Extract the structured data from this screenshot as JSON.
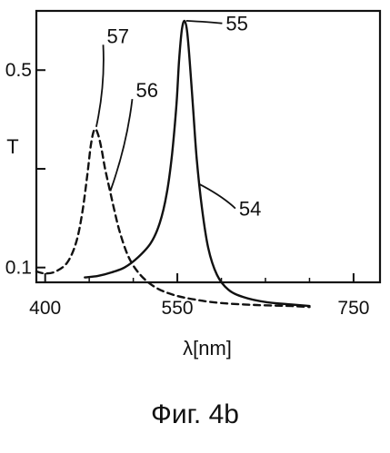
{
  "chart_data": {
    "type": "line",
    "title": "",
    "xlabel": "λ[nm]",
    "ylabel": "T",
    "xlim": [
      390,
      780
    ],
    "ylim": [
      0.07,
      0.62
    ],
    "x_ticks": [
      {
        "value": 400,
        "label": "400"
      },
      {
        "value": 550,
        "label": "550"
      },
      {
        "value": 750,
        "label": "750"
      }
    ],
    "y_ticks": [
      {
        "value": 0.1,
        "label": "0.1"
      },
      {
        "value": 0.3,
        "label": ""
      },
      {
        "value": 0.5,
        "label": "0.5"
      }
    ],
    "x_minor_ticks": [
      450,
      500,
      600,
      650,
      700
    ],
    "grid": false,
    "series": [
      {
        "id": "54",
        "style": "solid",
        "points": [
          [
            445,
            0.08
          ],
          [
            460,
            0.083
          ],
          [
            475,
            0.09
          ],
          [
            490,
            0.1
          ],
          [
            505,
            0.12
          ],
          [
            520,
            0.15
          ],
          [
            530,
            0.19
          ],
          [
            538,
            0.25
          ],
          [
            544,
            0.33
          ],
          [
            549,
            0.43
          ],
          [
            552,
            0.52
          ],
          [
            555,
            0.58
          ],
          [
            558,
            0.6
          ],
          [
            561,
            0.58
          ],
          [
            564,
            0.52
          ],
          [
            568,
            0.42
          ],
          [
            572,
            0.32
          ],
          [
            578,
            0.22
          ],
          [
            585,
            0.14
          ],
          [
            595,
            0.085
          ],
          [
            608,
            0.055
          ],
          [
            625,
            0.04
          ],
          [
            650,
            0.03
          ],
          [
            680,
            0.025
          ],
          [
            700,
            0.022
          ]
        ]
      },
      {
        "id": "57",
        "style": "dashed",
        "points": [
          [
            390,
            0.092
          ],
          [
            400,
            0.088
          ],
          [
            412,
            0.092
          ],
          [
            425,
            0.11
          ],
          [
            435,
            0.15
          ],
          [
            442,
            0.21
          ],
          [
            448,
            0.29
          ],
          [
            452,
            0.35
          ],
          [
            456,
            0.38
          ],
          [
            460,
            0.37
          ],
          [
            464,
            0.34
          ],
          [
            468,
            0.3
          ],
          [
            473,
            0.26
          ],
          [
            478,
            0.22
          ],
          [
            485,
            0.17
          ],
          [
            495,
            0.12
          ],
          [
            508,
            0.085
          ],
          [
            525,
            0.06
          ],
          [
            545,
            0.045
          ],
          [
            570,
            0.035
          ],
          [
            600,
            0.028
          ],
          [
            640,
            0.024
          ],
          [
            680,
            0.022
          ],
          [
            700,
            0.02
          ]
        ]
      }
    ],
    "annotations": [
      {
        "text": "57",
        "x": 470,
        "y": 0.555,
        "point_to": [
          458,
          0.385
        ]
      },
      {
        "text": "56",
        "x": 503,
        "y": 0.445,
        "point_to": [
          474,
          0.255
        ]
      },
      {
        "text": "55",
        "x": 605,
        "y": 0.58,
        "point_to": [
          560,
          0.6
        ]
      },
      {
        "text": "54",
        "x": 620,
        "y": 0.205,
        "point_to": [
          574,
          0.27
        ]
      }
    ],
    "caption": "Фиг. 4b"
  }
}
